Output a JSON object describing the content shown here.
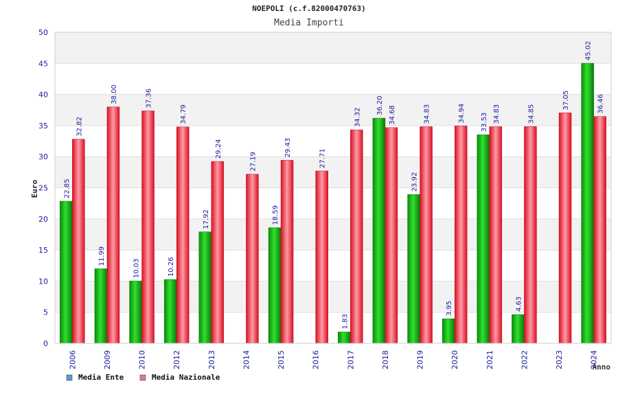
{
  "colors": {
    "ente": "#16b816",
    "nazionale": "#ee2233",
    "legend_ente": "#5b9bd5",
    "legend_nazionale": "#d67aa0",
    "grid": "#dddddd",
    "band": "#f2f2f2",
    "text": "#1a1aa0"
  },
  "chart_data": {
    "type": "bar",
    "title": "NOEPOLI (c.f.82000470763)",
    "subtitle": "Media Importi",
    "xlabel": "Anno",
    "ylabel": "Euro",
    "ylim": [
      0,
      50
    ],
    "yticks": [
      "0",
      "5",
      "10",
      "15",
      "20",
      "25",
      "30",
      "35",
      "40",
      "45",
      "50"
    ],
    "grid": true,
    "legend_position": "bottom-left",
    "categories": [
      "2006",
      "2009",
      "2010",
      "2012",
      "2013",
      "2014",
      "2015",
      "2016",
      "2017",
      "2018",
      "2019",
      "2020",
      "2021",
      "2022",
      "2023",
      "2024"
    ],
    "series": [
      {
        "name": "Media Ente",
        "values": [
          22.85,
          11.99,
          10.03,
          10.26,
          17.92,
          null,
          18.59,
          null,
          1.83,
          36.2,
          23.92,
          3.95,
          33.53,
          4.63,
          null,
          45.02
        ],
        "labels": [
          "22.85",
          "11.99",
          "10.03",
          "10.26",
          "17.92",
          "",
          "18.59",
          "",
          "1.83",
          "36.20",
          "23.92",
          "3.95",
          "33.53",
          "4.63",
          "",
          "45.02"
        ]
      },
      {
        "name": "Media Nazionale",
        "values": [
          32.82,
          38.0,
          37.36,
          34.79,
          29.24,
          27.19,
          29.43,
          27.71,
          34.32,
          34.68,
          34.83,
          34.94,
          34.83,
          34.85,
          37.05,
          36.46
        ],
        "labels": [
          "32.82",
          "38.00",
          "37.36",
          "34.79",
          "29.24",
          "27.19",
          "29.43",
          "27.71",
          "34.32",
          "34.68",
          "34.83",
          "34.94",
          "34.83",
          "34.85",
          "37.05",
          "36.46"
        ]
      }
    ]
  }
}
